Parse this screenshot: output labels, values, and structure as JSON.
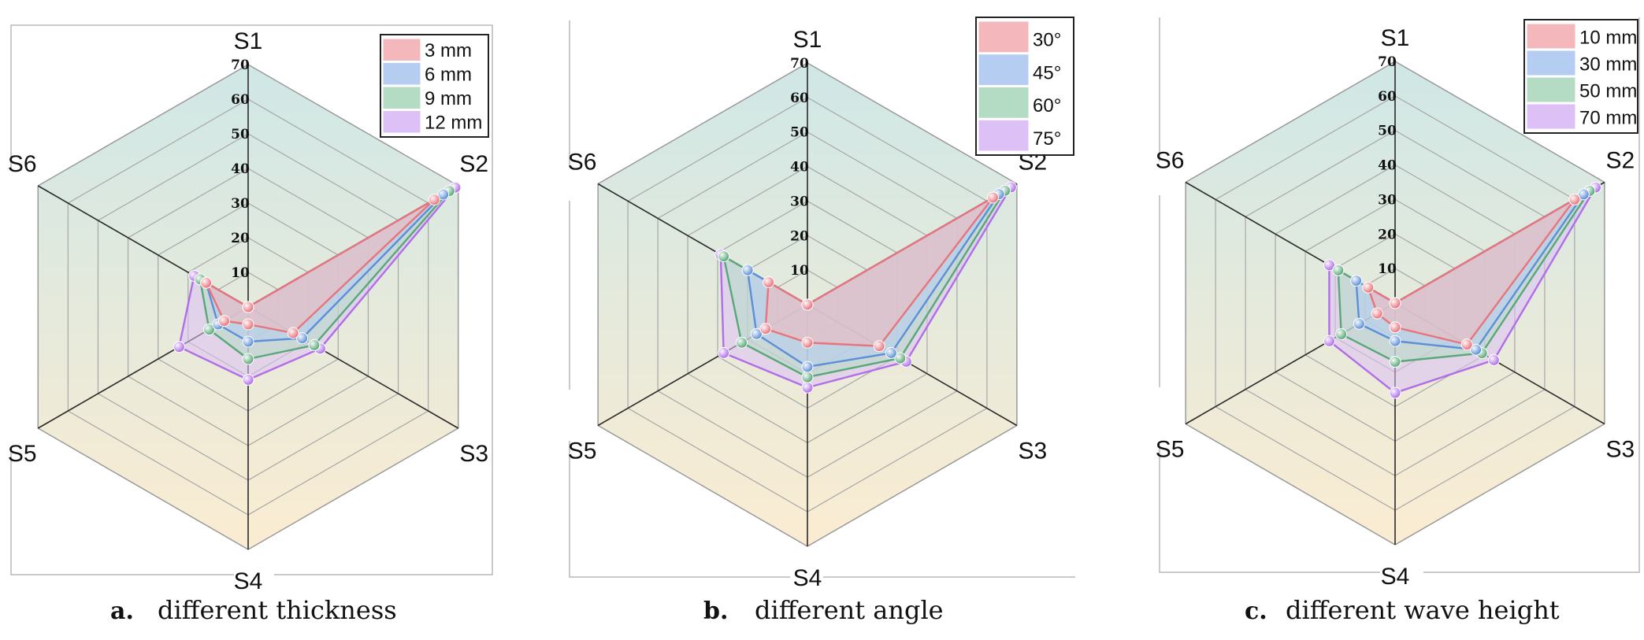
{
  "colors": {
    "series": [
      "#e8747c",
      "#5b8fd8",
      "#58a878",
      "#b06ee8"
    ],
    "series_fill": [
      "#f4b8bc",
      "#b4cdf0",
      "#b4dcc4",
      "#dcc0f6"
    ],
    "bg_top": "#cfe7e6",
    "bg_bottom": "#fbecd2"
  },
  "chart_data": [
    {
      "type": "radar",
      "caption_letter": "a.",
      "caption_text": "different thickness",
      "axes": [
        "S1",
        "S2",
        "S3",
        "S4",
        "S5",
        "S6"
      ],
      "ticks": [
        "10",
        "20",
        "30",
        "40",
        "50",
        "60",
        "70"
      ],
      "rlim": [
        0,
        70
      ],
      "legend_position": "top-right",
      "series": [
        {
          "name": "3 mm",
          "values": [
            0,
            62,
            15,
            5,
            8,
            14
          ]
        },
        {
          "name": "6 mm",
          "values": [
            0,
            65,
            18,
            10,
            10,
            14
          ]
        },
        {
          "name": "9 mm",
          "values": [
            0,
            67,
            22,
            15,
            13,
            16
          ]
        },
        {
          "name": "12 mm",
          "values": [
            0,
            69,
            24,
            21,
            23,
            18
          ]
        }
      ]
    },
    {
      "type": "radar",
      "caption_letter": "b.",
      "caption_text": "different angle",
      "axes": [
        "S1",
        "S2",
        "S3",
        "S4",
        "S5",
        "S6"
      ],
      "ticks": [
        "10",
        "20",
        "30",
        "40",
        "50",
        "60",
        "70"
      ],
      "rlim": [
        0,
        70
      ],
      "legend_position": "top-right",
      "series": [
        {
          "name": "30°",
          "values": [
            0,
            62,
            24,
            11,
            14,
            13
          ]
        },
        {
          "name": "45°",
          "values": [
            0,
            64,
            28,
            18,
            17,
            20
          ]
        },
        {
          "name": "60°",
          "values": [
            0,
            66,
            31,
            21,
            22,
            28
          ]
        },
        {
          "name": "75°",
          "values": [
            0,
            68,
            33,
            24,
            28,
            29
          ]
        }
      ]
    },
    {
      "type": "radar",
      "caption_letter": "c.",
      "caption_text": "different wave height",
      "axes": [
        "S1",
        "S2",
        "S3",
        "S4",
        "S5",
        "S6"
      ],
      "ticks": [
        "10",
        "20",
        "30",
        "40",
        "50",
        "60",
        "70"
      ],
      "rlim": [
        0,
        70
      ],
      "legend_position": "top-right",
      "series": [
        {
          "name": "10 mm",
          "values": [
            0,
            60,
            24,
            7,
            6,
            9
          ]
        },
        {
          "name": "30 mm",
          "values": [
            0,
            63,
            27,
            11,
            12,
            13
          ]
        },
        {
          "name": "50 mm",
          "values": [
            0,
            65,
            29,
            17,
            18,
            19
          ]
        },
        {
          "name": "70 mm",
          "values": [
            0,
            67,
            33,
            26,
            22,
            22
          ]
        }
      ]
    }
  ]
}
